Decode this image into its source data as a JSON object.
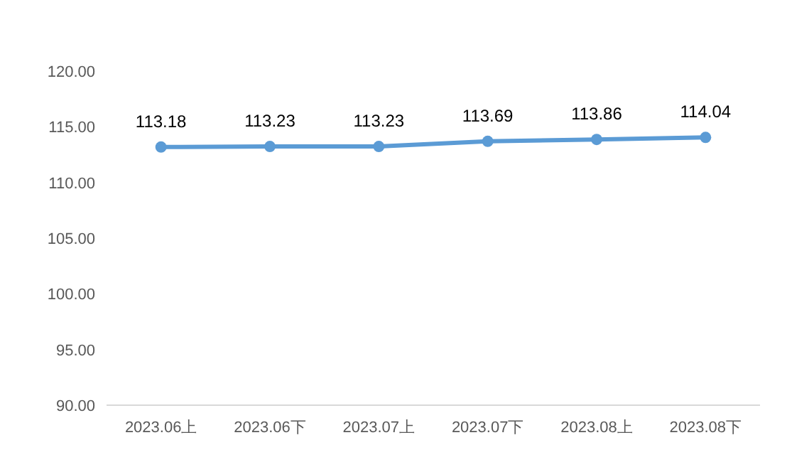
{
  "chart_data": {
    "type": "line",
    "categories": [
      "2023.06上",
      "2023.06下",
      "2023.07上",
      "2023.07下",
      "2023.08上",
      "2023.08下"
    ],
    "series": [
      {
        "color": "#5b9bd5",
        "values": [
          113.18,
          113.23,
          113.23,
          113.69,
          113.86,
          114.04
        ]
      }
    ],
    "ylim": [
      90,
      120
    ],
    "yticks": [
      {
        "value": 90,
        "label": "90.00"
      },
      {
        "value": 95,
        "label": "95.00"
      },
      {
        "value": 100,
        "label": "100.00"
      },
      {
        "value": 105,
        "label": "105.00"
      },
      {
        "value": 110,
        "label": "110.00"
      },
      {
        "value": 115,
        "label": "115.00"
      },
      {
        "value": 120,
        "label": "120.00"
      }
    ],
    "marker": "circle",
    "line_style": "solid",
    "data_labels": true,
    "grid": false
  }
}
